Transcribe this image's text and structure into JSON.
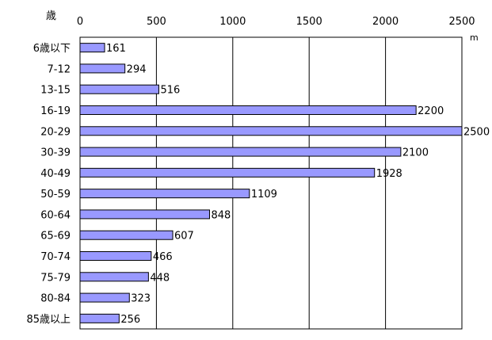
{
  "chart_data": {
    "type": "bar",
    "orientation": "horizontal",
    "y_axis_title": "歳",
    "x_unit": "m",
    "xlim": [
      0,
      2500
    ],
    "x_ticks": [
      0,
      500,
      1000,
      1500,
      2000,
      2500
    ],
    "grid": "vertical",
    "bar_color": "#9999ff",
    "categories": [
      "6歳以下",
      "7-12",
      "13-15",
      "16-19",
      "20-29",
      "30-39",
      "40-49",
      "50-59",
      "60-64",
      "65-69",
      "70-74",
      "75-79",
      "80-84",
      "85歳以上"
    ],
    "values": [
      161,
      294,
      516,
      2200,
      2500,
      2100,
      1928,
      1109,
      848,
      607,
      466,
      448,
      323,
      256
    ]
  }
}
